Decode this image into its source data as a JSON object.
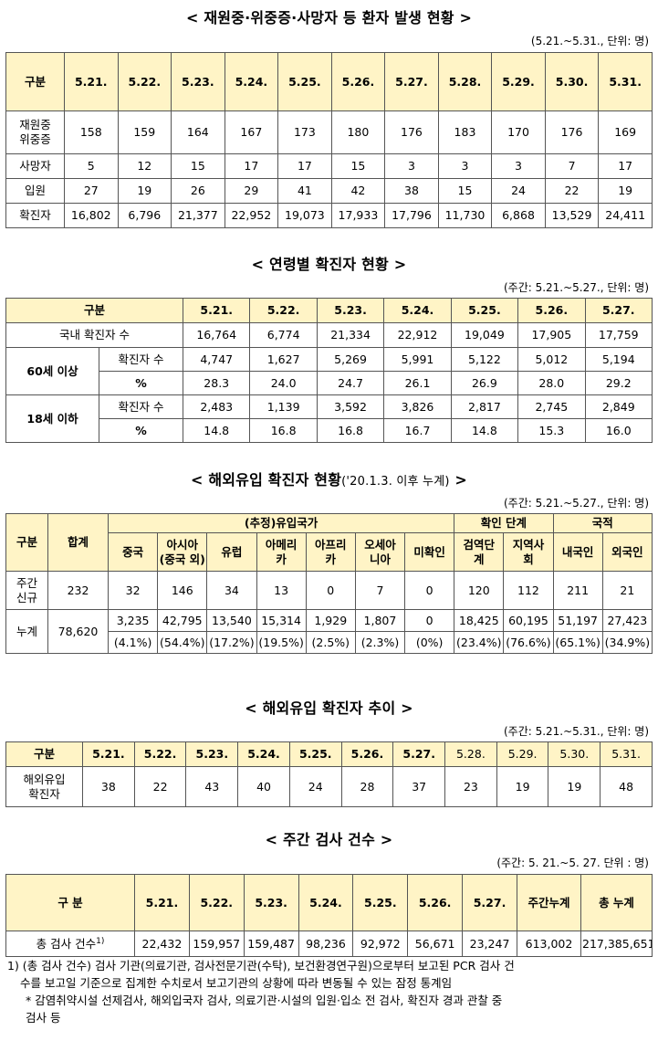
{
  "t1": {
    "title": "< 재원중·위중증·사망자 등 환자 발생 현황 >",
    "unit": "(5.21.~5.31., 단위: 명)",
    "header": [
      "구분",
      "5.21.",
      "5.22.",
      "5.23.",
      "5.24.",
      "5.25.",
      "5.26.",
      "5.27.",
      "5.28.",
      "5.29.",
      "5.30.",
      "5.31."
    ],
    "rows": [
      {
        "label": "재원중\n위중증",
        "values": [
          "158",
          "159",
          "164",
          "167",
          "173",
          "180",
          "176",
          "183",
          "170",
          "176",
          "169"
        ]
      },
      {
        "label": "사망자",
        "values": [
          "5",
          "12",
          "15",
          "17",
          "17",
          "15",
          "3",
          "3",
          "3",
          "7",
          "17"
        ]
      },
      {
        "label": "입원",
        "values": [
          "27",
          "19",
          "26",
          "29",
          "41",
          "42",
          "38",
          "15",
          "24",
          "22",
          "19"
        ]
      },
      {
        "label": "확진자",
        "values": [
          "16,802",
          "6,796",
          "21,377",
          "22,952",
          "19,073",
          "17,933",
          "17,796",
          "11,730",
          "6,868",
          "13,529",
          "24,411"
        ]
      }
    ]
  },
  "t2": {
    "title": "< 연령별 확진자 현황 >",
    "unit": "(주간: 5.21.~5.27., 단위: 명)",
    "header": [
      "구분",
      "5.21.",
      "5.22.",
      "5.23.",
      "5.24.",
      "5.25.",
      "5.26.",
      "5.27."
    ],
    "domestic": {
      "label": "국내 확진자 수",
      "values": [
        "16,764",
        "6,774",
        "21,334",
        "22,912",
        "19,049",
        "17,905",
        "17,759"
      ]
    },
    "groups": [
      {
        "label": "60세 이상",
        "count_label": "확진자 수",
        "pct_label": "%",
        "counts": [
          "4,747",
          "1,627",
          "5,269",
          "5,991",
          "5,122",
          "5,012",
          "5,194"
        ],
        "pcts": [
          "28.3",
          "24.0",
          "24.7",
          "26.1",
          "26.9",
          "28.0",
          "29.2"
        ]
      },
      {
        "label": "18세 이하",
        "count_label": "확진자 수",
        "pct_label": "%",
        "counts": [
          "2,483",
          "1,139",
          "3,592",
          "3,826",
          "2,817",
          "2,745",
          "2,849"
        ],
        "pcts": [
          "14.8",
          "16.8",
          "16.8",
          "16.7",
          "14.8",
          "15.3",
          "16.0"
        ]
      }
    ]
  },
  "t3": {
    "title": "< 해외유입 확진자 현황",
    "title_sub": "('20.1.3. 이후 누계)",
    "title_end": " >",
    "unit": "(주간: 5.21.~5.27., 단위: 명)",
    "h_gubun": "구분",
    "h_total": "합계",
    "h_country": "(추정)유입국가",
    "h_stage": "확인 단계",
    "h_nation": "국적",
    "sub": [
      "중국",
      "아시아\n(중국 외)",
      "유럽",
      "아메리\n카",
      "아프리\n카",
      "오세아\n니아",
      "미확인",
      "검역단\n계",
      "지역사\n회",
      "내국인",
      "외국인"
    ],
    "weekly": {
      "label": "주간\n신규",
      "total": "232",
      "values": [
        "32",
        "146",
        "34",
        "13",
        "0",
        "7",
        "0",
        "120",
        "112",
        "211",
        "21"
      ]
    },
    "cumulative": {
      "label": "누계",
      "total": "78,620",
      "values": [
        "3,235",
        "42,795",
        "13,540",
        "15,314",
        "1,929",
        "1,807",
        "0",
        "18,425",
        "60,195",
        "51,197",
        "27,423"
      ],
      "pcts": [
        "(4.1%)",
        "(54.4%)",
        "(17.2%)",
        "(19.5%)",
        "(2.5%)",
        "(2.3%)",
        "(0%)",
        "(23.4%)",
        "(76.6%)",
        "(65.1%)",
        "(34.9%)"
      ]
    }
  },
  "t4": {
    "title": "< 해외유입 확진자 추이 >",
    "unit": "(주간: 5.21.~5.31., 단위: 명)",
    "header": [
      "구분",
      "5.21.",
      "5.22.",
      "5.23.",
      "5.24.",
      "5.25.",
      "5.26.",
      "5.27.",
      "5.28.",
      "5.29.",
      "5.30.",
      "5.31."
    ],
    "row": {
      "label": "해외유입\n확진자",
      "values": [
        "38",
        "22",
        "43",
        "40",
        "24",
        "28",
        "37",
        "23",
        "19",
        "19",
        "48"
      ]
    }
  },
  "t5": {
    "title": "< 주간 검사 건수 >",
    "unit": "(주간: 5. 21.~5. 27. 단위 : 명)",
    "header": [
      "구 분",
      "5.21.",
      "5.22.",
      "5.23.",
      "5.24.",
      "5.25.",
      "5.26.",
      "5.27.",
      "주간누계",
      "총 누계"
    ],
    "row": {
      "label": "총 검사 건수",
      "label_sup": "1)",
      "values": [
        "22,432",
        "159,957",
        "159,487",
        "98,236",
        "92,972",
        "56,671",
        "23,247",
        "613,002",
        "217,385,651"
      ]
    }
  },
  "footnote": {
    "line1": "1) (총 검사 건수) 검사 기관(의료기관, 검사전문기관(수탁), 보건환경연구원)으로부터 보고된 PCR 검사 건",
    "line2": "수를 보고일 기준으로 집계한 수치로서 보고기관의 상황에 따라 변동될 수 있는 잠정 통계임",
    "line3": "* 감염취약시설 선제검사, 해외입국자 검사, 의료기관·시설의 입원·입소 전 검사, 확진자 경과 관찰 중",
    "line4": "검사 등"
  }
}
